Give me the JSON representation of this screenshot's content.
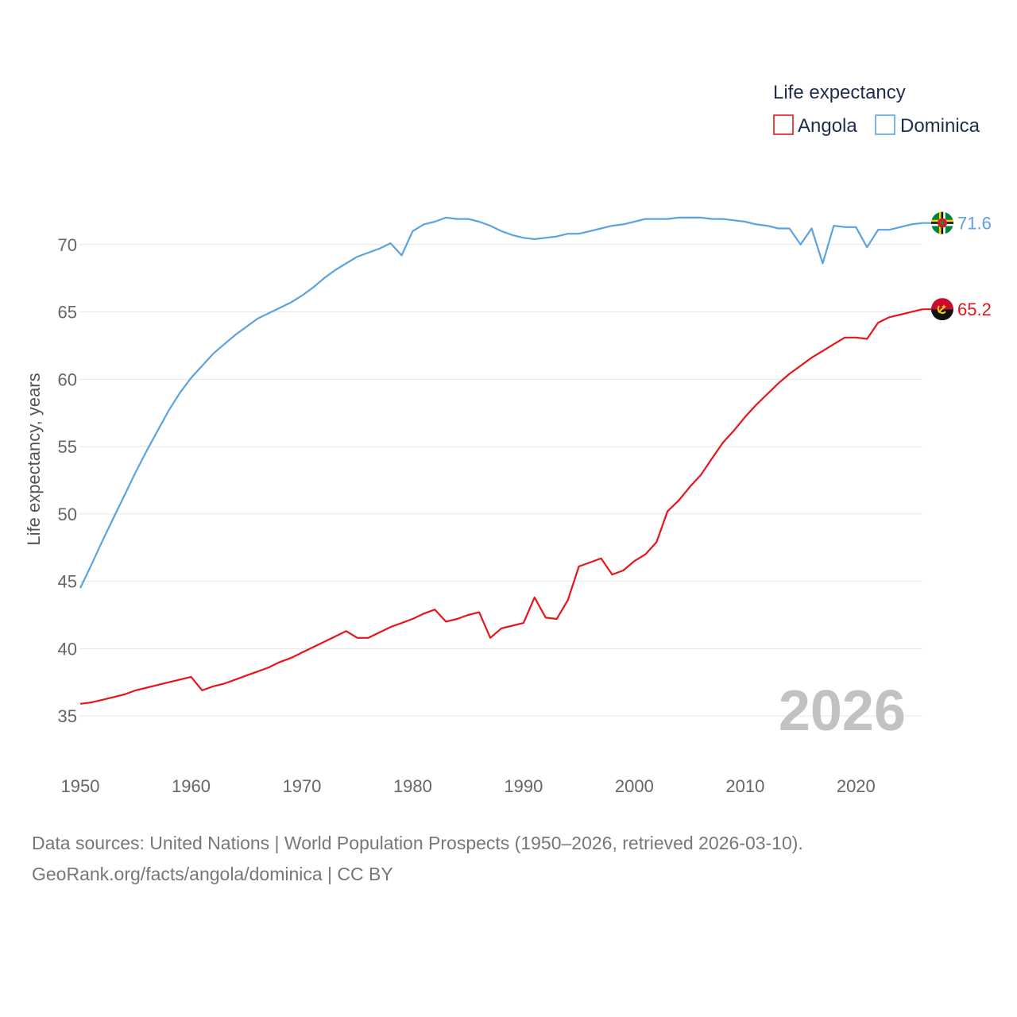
{
  "chart_data": {
    "type": "line",
    "ylabel": "Life expectancy, years",
    "xlabel": "",
    "xlim": [
      1950,
      2026
    ],
    "ylim": [
      33,
      74
    ],
    "yticks": [
      35,
      40,
      45,
      50,
      55,
      60,
      65,
      70
    ],
    "xticks": [
      1950,
      1960,
      1970,
      1980,
      1990,
      2000,
      2010,
      2020
    ],
    "legend": {
      "title": "Life expectancy",
      "placement": "top-right"
    },
    "current_year": "2026",
    "x": [
      1950,
      1951,
      1952,
      1953,
      1954,
      1955,
      1956,
      1957,
      1958,
      1959,
      1960,
      1961,
      1962,
      1963,
      1964,
      1965,
      1966,
      1967,
      1968,
      1969,
      1970,
      1971,
      1972,
      1973,
      1974,
      1975,
      1976,
      1977,
      1978,
      1979,
      1980,
      1981,
      1982,
      1983,
      1984,
      1985,
      1986,
      1987,
      1988,
      1989,
      1990,
      1991,
      1992,
      1993,
      1994,
      1995,
      1996,
      1997,
      1998,
      1999,
      2000,
      2001,
      2002,
      2003,
      2004,
      2005,
      2006,
      2007,
      2008,
      2009,
      2010,
      2011,
      2012,
      2013,
      2014,
      2015,
      2016,
      2017,
      2018,
      2019,
      2020,
      2021,
      2022,
      2023,
      2024,
      2025,
      2026
    ],
    "series": [
      {
        "name": "Angola",
        "color": "#e8141a",
        "end_label": "65.2",
        "values": [
          35.9,
          36.0,
          36.2,
          36.4,
          36.6,
          36.9,
          37.1,
          37.3,
          37.5,
          37.7,
          37.9,
          36.9,
          37.2,
          37.4,
          37.7,
          38.0,
          38.3,
          38.6,
          39.0,
          39.3,
          39.7,
          40.1,
          40.5,
          40.9,
          41.3,
          40.8,
          40.8,
          41.2,
          41.6,
          41.9,
          42.2,
          42.6,
          42.9,
          42.0,
          42.2,
          42.5,
          42.7,
          40.8,
          41.5,
          41.7,
          41.9,
          43.8,
          42.3,
          42.2,
          43.6,
          46.1,
          46.4,
          46.7,
          45.5,
          45.8,
          46.5,
          47.0,
          47.9,
          50.2,
          51.0,
          52.0,
          52.9,
          54.1,
          55.3,
          56.2,
          57.2,
          58.1,
          58.9,
          59.7,
          60.4,
          61.0,
          61.6,
          62.1,
          62.6,
          63.1,
          63.1,
          63.0,
          64.2,
          64.6,
          64.8,
          65.0,
          65.2
        ]
      },
      {
        "name": "Dominica",
        "color": "#5ba3e0",
        "end_label": "71.6",
        "values": [
          44.5,
          46.2,
          48.0,
          49.7,
          51.4,
          53.1,
          54.7,
          56.2,
          57.7,
          59.0,
          60.1,
          61.0,
          61.9,
          62.6,
          63.3,
          63.9,
          64.5,
          64.9,
          65.3,
          65.7,
          66.2,
          66.8,
          67.5,
          68.1,
          68.6,
          69.1,
          69.4,
          69.7,
          70.1,
          69.2,
          71.0,
          71.5,
          71.7,
          72.0,
          71.9,
          71.9,
          71.7,
          71.4,
          71.0,
          70.7,
          70.5,
          70.4,
          70.5,
          70.6,
          70.8,
          70.8,
          71.0,
          71.2,
          71.4,
          71.5,
          71.7,
          71.9,
          71.9,
          71.9,
          72.0,
          72.0,
          72.0,
          71.9,
          71.9,
          71.8,
          71.7,
          71.5,
          71.4,
          71.2,
          71.2,
          70.0,
          71.2,
          68.6,
          71.4,
          71.3,
          71.3,
          69.8,
          71.1,
          71.1,
          71.3,
          71.5,
          71.6
        ]
      }
    ]
  },
  "footer": {
    "line1": "Data sources: United Nations | World Population Prospects (1950–2026, retrieved 2026-03-10).",
    "line2": "GeoRank.org/facts/angola/dominica | CC BY"
  }
}
